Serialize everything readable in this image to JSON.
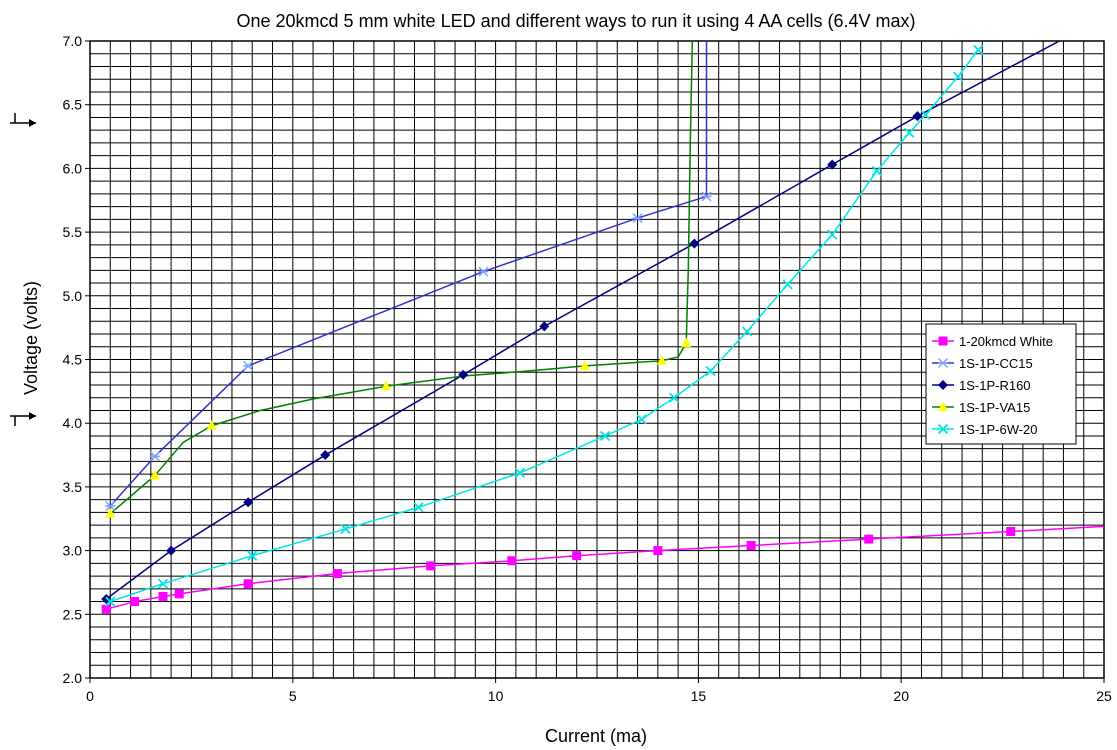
{
  "chart_data": {
    "type": "line",
    "title": "One 20kmcd 5 mm white LED and different ways to run it using 4 AA cells (6.4V max)",
    "xlabel": "Current (ma)",
    "ylabel": "Voltage (volts)",
    "xlim": [
      0,
      25
    ],
    "ylim": [
      2.0,
      7.0
    ],
    "x_ticks": [
      "0",
      "5",
      "10",
      "15",
      "20",
      "25"
    ],
    "y_ticks": [
      "2.0",
      "2.5",
      "3.0",
      "3.5",
      "4.0",
      "4.5",
      "5.0",
      "5.5",
      "6.0",
      "6.5",
      "7.0"
    ],
    "x_tick_values": [
      0,
      5,
      10,
      15,
      20,
      25
    ],
    "y_tick_values": [
      2.0,
      2.5,
      3.0,
      3.5,
      4.0,
      4.5,
      5.0,
      5.5,
      6.0,
      6.5,
      7.0
    ],
    "grid": {
      "vertical_step": 0.5,
      "horizontal_step": 0.1
    },
    "legend_position": "right",
    "arrow_marks": [
      "arrow at y-axis near 6.4 V",
      "arrow at y-axis near 4.0 V"
    ],
    "series": [
      {
        "name": "1-20kmcd White",
        "color": "#ff00ff",
        "marker": "square",
        "points": [
          [
            0.4,
            2.54
          ],
          [
            1.1,
            2.6
          ],
          [
            1.8,
            2.64
          ],
          [
            2.2,
            2.66
          ],
          [
            3.9,
            2.74
          ],
          [
            6.1,
            2.82
          ],
          [
            8.4,
            2.88
          ],
          [
            10.4,
            2.92
          ],
          [
            12.0,
            2.96
          ],
          [
            14.0,
            3.0
          ],
          [
            16.3,
            3.04
          ],
          [
            19.2,
            3.09
          ],
          [
            22.7,
            3.15
          ],
          [
            25.0,
            3.19
          ]
        ],
        "marker_points": [
          [
            0.4,
            2.54
          ],
          [
            1.1,
            2.6
          ],
          [
            1.8,
            2.64
          ],
          [
            2.2,
            2.66
          ],
          [
            3.9,
            2.74
          ],
          [
            6.1,
            2.82
          ],
          [
            8.4,
            2.88
          ],
          [
            10.4,
            2.92
          ],
          [
            12.0,
            2.96
          ],
          [
            14.0,
            3.0
          ],
          [
            16.3,
            3.04
          ],
          [
            19.2,
            3.09
          ],
          [
            22.7,
            3.15
          ]
        ]
      },
      {
        "name": "1S-1P-CC15",
        "color": "#3333cc",
        "marker_color": "#7f9fff",
        "marker": "asterisk",
        "points": [
          [
            0.5,
            3.35
          ],
          [
            1.6,
            3.74
          ],
          [
            3.9,
            4.45
          ],
          [
            9.7,
            5.19
          ],
          [
            13.5,
            5.61
          ],
          [
            15.2,
            5.78
          ],
          [
            15.2,
            7.0
          ]
        ],
        "marker_points": [
          [
            0.5,
            3.35
          ],
          [
            1.6,
            3.74
          ],
          [
            3.9,
            4.45
          ],
          [
            9.7,
            5.19
          ],
          [
            13.5,
            5.61
          ],
          [
            15.2,
            5.78
          ]
        ]
      },
      {
        "name": "1S-1P-R160",
        "color": "#000080",
        "marker": "diamond",
        "points": [
          [
            0.4,
            2.62
          ],
          [
            2.0,
            3.0
          ],
          [
            3.9,
            3.38
          ],
          [
            5.8,
            3.75
          ],
          [
            9.2,
            4.38
          ],
          [
            11.2,
            4.76
          ],
          [
            14.9,
            5.41
          ],
          [
            18.3,
            6.03
          ],
          [
            20.4,
            6.41
          ],
          [
            23.9,
            7.0
          ]
        ],
        "marker_points": [
          [
            0.4,
            2.62
          ],
          [
            2.0,
            3.0
          ],
          [
            3.9,
            3.38
          ],
          [
            5.8,
            3.75
          ],
          [
            9.2,
            4.38
          ],
          [
            11.2,
            4.76
          ],
          [
            14.9,
            5.41
          ],
          [
            18.3,
            6.03
          ],
          [
            20.4,
            6.41
          ]
        ]
      },
      {
        "name": "1S-1P-VA15",
        "color": "#008000",
        "marker_color": "#ffff00",
        "marker": "triangle",
        "points": [
          [
            0.5,
            3.29
          ],
          [
            1.6,
            3.59
          ],
          [
            2.3,
            3.85
          ],
          [
            3.0,
            3.98
          ],
          [
            4.2,
            4.1
          ],
          [
            5.5,
            4.19
          ],
          [
            7.3,
            4.29
          ],
          [
            9.2,
            4.37
          ],
          [
            10.8,
            4.41
          ],
          [
            12.2,
            4.45
          ],
          [
            14.1,
            4.49
          ],
          [
            14.5,
            4.52
          ],
          [
            14.7,
            4.63
          ],
          [
            14.75,
            5.2
          ],
          [
            14.8,
            6.2
          ],
          [
            14.85,
            7.0
          ]
        ],
        "marker_points": [
          [
            0.5,
            3.29
          ],
          [
            1.6,
            3.59
          ],
          [
            3.0,
            3.98
          ],
          [
            7.3,
            4.29
          ],
          [
            12.2,
            4.45
          ],
          [
            14.1,
            4.49
          ],
          [
            14.7,
            4.63
          ]
        ]
      },
      {
        "name": "1S-1P-6W-20",
        "color": "#00e5e5",
        "marker": "x",
        "points": [
          [
            0.5,
            2.6
          ],
          [
            1.8,
            2.74
          ],
          [
            4.0,
            2.96
          ],
          [
            6.3,
            3.17
          ],
          [
            8.1,
            3.34
          ],
          [
            10.6,
            3.61
          ],
          [
            12.7,
            3.9
          ],
          [
            13.6,
            4.03
          ],
          [
            14.4,
            4.2
          ],
          [
            15.3,
            4.41
          ],
          [
            16.2,
            4.72
          ],
          [
            17.2,
            5.09
          ],
          [
            18.3,
            5.48
          ],
          [
            19.4,
            5.98
          ],
          [
            20.2,
            6.28
          ],
          [
            20.6,
            6.42
          ],
          [
            21.4,
            6.72
          ],
          [
            21.9,
            6.93
          ]
        ],
        "marker_points": [
          [
            0.5,
            2.6
          ],
          [
            1.8,
            2.74
          ],
          [
            4.0,
            2.96
          ],
          [
            6.3,
            3.17
          ],
          [
            8.1,
            3.34
          ],
          [
            10.6,
            3.61
          ],
          [
            12.7,
            3.9
          ],
          [
            13.6,
            4.03
          ],
          [
            14.4,
            4.2
          ],
          [
            15.3,
            4.41
          ],
          [
            16.2,
            4.72
          ],
          [
            17.2,
            5.09
          ],
          [
            18.3,
            5.48
          ],
          [
            19.4,
            5.98
          ],
          [
            20.2,
            6.28
          ],
          [
            20.6,
            6.42
          ],
          [
            21.4,
            6.72
          ],
          [
            21.9,
            6.93
          ]
        ]
      }
    ]
  }
}
